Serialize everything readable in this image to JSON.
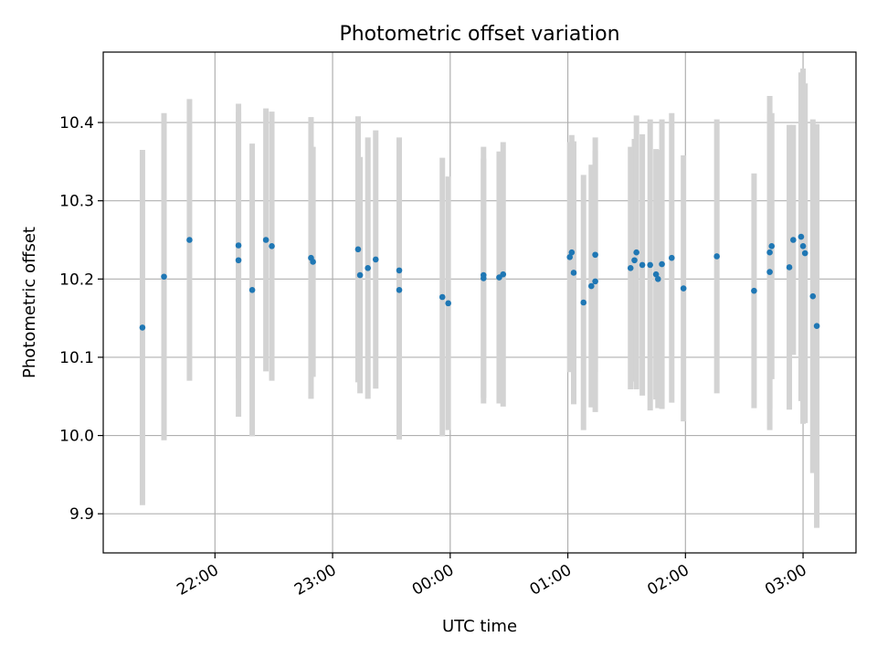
{
  "chart_data": {
    "type": "scatter",
    "title": "Photometric offset variation",
    "xlabel": "UTC time",
    "ylabel": "Photometric offset",
    "x_tick_labels": [
      "22:00",
      "23:00",
      "00:00",
      "01:00",
      "02:00",
      "03:00"
    ],
    "x_tick_hours": [
      22,
      23,
      24,
      25,
      26,
      27
    ],
    "y_ticks": [
      9.9,
      10.0,
      10.1,
      10.2,
      10.3,
      10.4
    ],
    "y_tick_labels": [
      "9.9",
      "10.0",
      "10.1",
      "10.2",
      "10.3",
      "10.4"
    ],
    "xlim_hours": [
      21.05,
      27.45
    ],
    "ylim": [
      9.85,
      10.49
    ],
    "grid": true,
    "legend": false,
    "colors": {
      "point": "#1f77b4",
      "errorbar": "#d3d3d3",
      "grid": "#b0b0b0"
    },
    "series": [
      {
        "x_time": [
          "21:23",
          "21:34",
          "21:47",
          "22:12",
          "22:12",
          "22:19",
          "22:26",
          "22:29",
          "22:49",
          "22:50",
          "23:13",
          "23:14",
          "23:18",
          "23:22",
          "23:34",
          "23:34",
          "23:56",
          "23:59",
          "24:17",
          "24:17",
          "24:25",
          "24:27",
          "25:01",
          "25:02",
          "25:03",
          "25:08",
          "25:12",
          "25:14",
          "25:14",
          "25:32",
          "25:34",
          "25:35",
          "25:38",
          "25:42",
          "25:45",
          "25:46",
          "25:48",
          "25:53",
          "25:59",
          "26:16",
          "26:35",
          "26:43",
          "26:43",
          "26:44",
          "26:53",
          "26:55",
          "26:59",
          "27:00",
          "27:01",
          "27:05",
          "27:07"
        ],
        "y": [
          10.138,
          10.203,
          10.25,
          10.243,
          10.224,
          10.186,
          10.25,
          10.242,
          10.227,
          10.222,
          10.238,
          10.205,
          10.214,
          10.225,
          10.211,
          10.186,
          10.177,
          10.169,
          10.205,
          10.201,
          10.202,
          10.206,
          10.228,
          10.234,
          10.208,
          10.17,
          10.191,
          10.231,
          10.197,
          10.214,
          10.224,
          10.234,
          10.218,
          10.218,
          10.206,
          10.2,
          10.219,
          10.227,
          10.188,
          10.229,
          10.185,
          10.234,
          10.209,
          10.242,
          10.215,
          10.25,
          10.254,
          10.242,
          10.233,
          10.178,
          10.14
        ],
        "y_error": [
          0.227,
          0.209,
          0.18,
          0.17,
          0.2,
          0.187,
          0.168,
          0.172,
          0.18,
          0.147,
          0.17,
          0.151,
          0.167,
          0.165,
          0.17,
          0.191,
          0.178,
          0.162,
          0.164,
          0.153,
          0.161,
          0.169,
          0.147,
          0.15,
          0.168,
          0.163,
          0.155,
          0.15,
          0.167,
          0.155,
          0.155,
          0.175,
          0.167,
          0.186,
          0.16,
          0.165,
          0.185,
          0.185,
          0.17,
          0.175,
          0.15,
          0.2,
          0.202,
          0.17,
          0.182,
          0.147,
          0.21,
          0.227,
          0.217,
          0.226,
          0.258
        ]
      }
    ]
  }
}
